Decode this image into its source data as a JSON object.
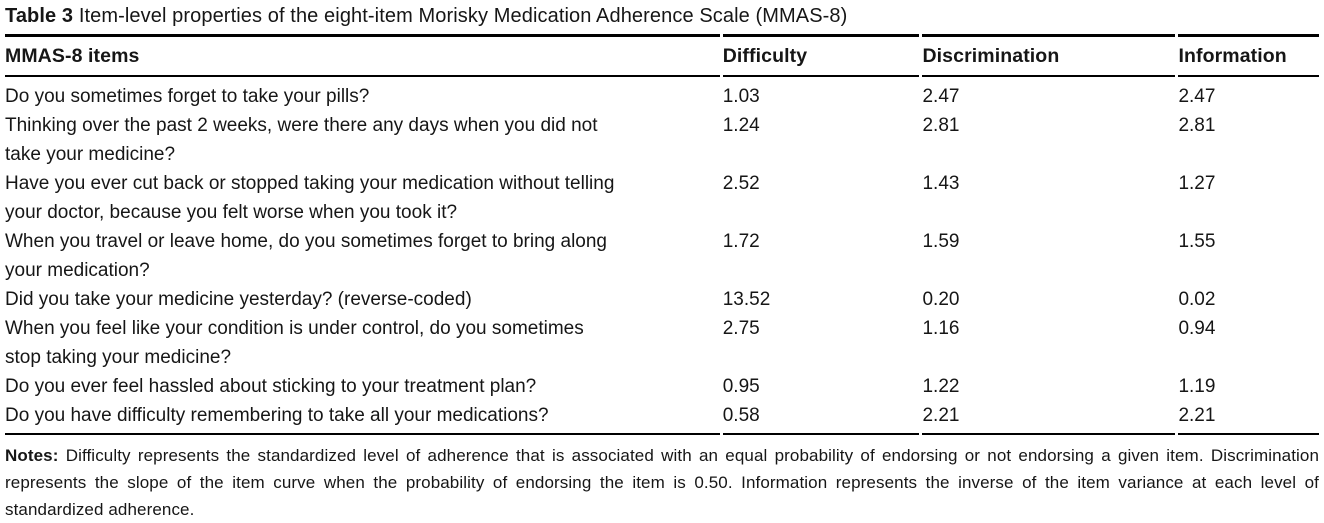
{
  "table": {
    "title_label": "Table 3",
    "title_text": "Item-level properties of the eight-item Morisky Medication Adherence Scale (MMAS-8)",
    "columns": {
      "items": "MMAS-8 items",
      "difficulty": "Difficulty",
      "discrimination": "Discrimination",
      "information": "Information"
    },
    "rows": [
      {
        "item": "Do you sometimes forget to take your pills?",
        "difficulty": "1.03",
        "discrimination": "2.47",
        "information": "2.47"
      },
      {
        "item": "Thinking over the past 2 weeks, were there any days when you did not\ntake your medicine?",
        "difficulty": "1.24",
        "discrimination": "2.81",
        "information": "2.81"
      },
      {
        "item": "Have you ever cut back or stopped taking your medication without telling\nyour doctor, because you felt worse when you took it?",
        "difficulty": "2.52",
        "discrimination": "1.43",
        "information": "1.27"
      },
      {
        "item": "When you travel or leave home, do you sometimes forget to bring along\nyour medication?",
        "difficulty": "1.72",
        "discrimination": "1.59",
        "information": "1.55"
      },
      {
        "item": "Did you take your medicine yesterday? (reverse-coded)",
        "difficulty": "13.52",
        "discrimination": "0.20",
        "information": "0.02"
      },
      {
        "item": "When you feel like your condition is under control, do you sometimes\nstop taking your medicine?",
        "difficulty": "2.75",
        "discrimination": "1.16",
        "information": "0.94"
      },
      {
        "item": "Do you ever feel hassled about sticking to your treatment plan?",
        "difficulty": "0.95",
        "discrimination": "1.22",
        "information": "1.19"
      },
      {
        "item": "Do you have difficulty remembering to take all your medications?",
        "difficulty": "0.58",
        "discrimination": "2.21",
        "information": "2.21"
      }
    ],
    "notes_label": "Notes:",
    "notes_text": "Difficulty represents the standardized level of adherence that is associated with an equal probability of endorsing or not endorsing a given item. Discrimination represents the slope of the item curve when the probability of endorsing the item is 0.50. Information represents the inverse of the item variance at each level of standardized adherence."
  }
}
